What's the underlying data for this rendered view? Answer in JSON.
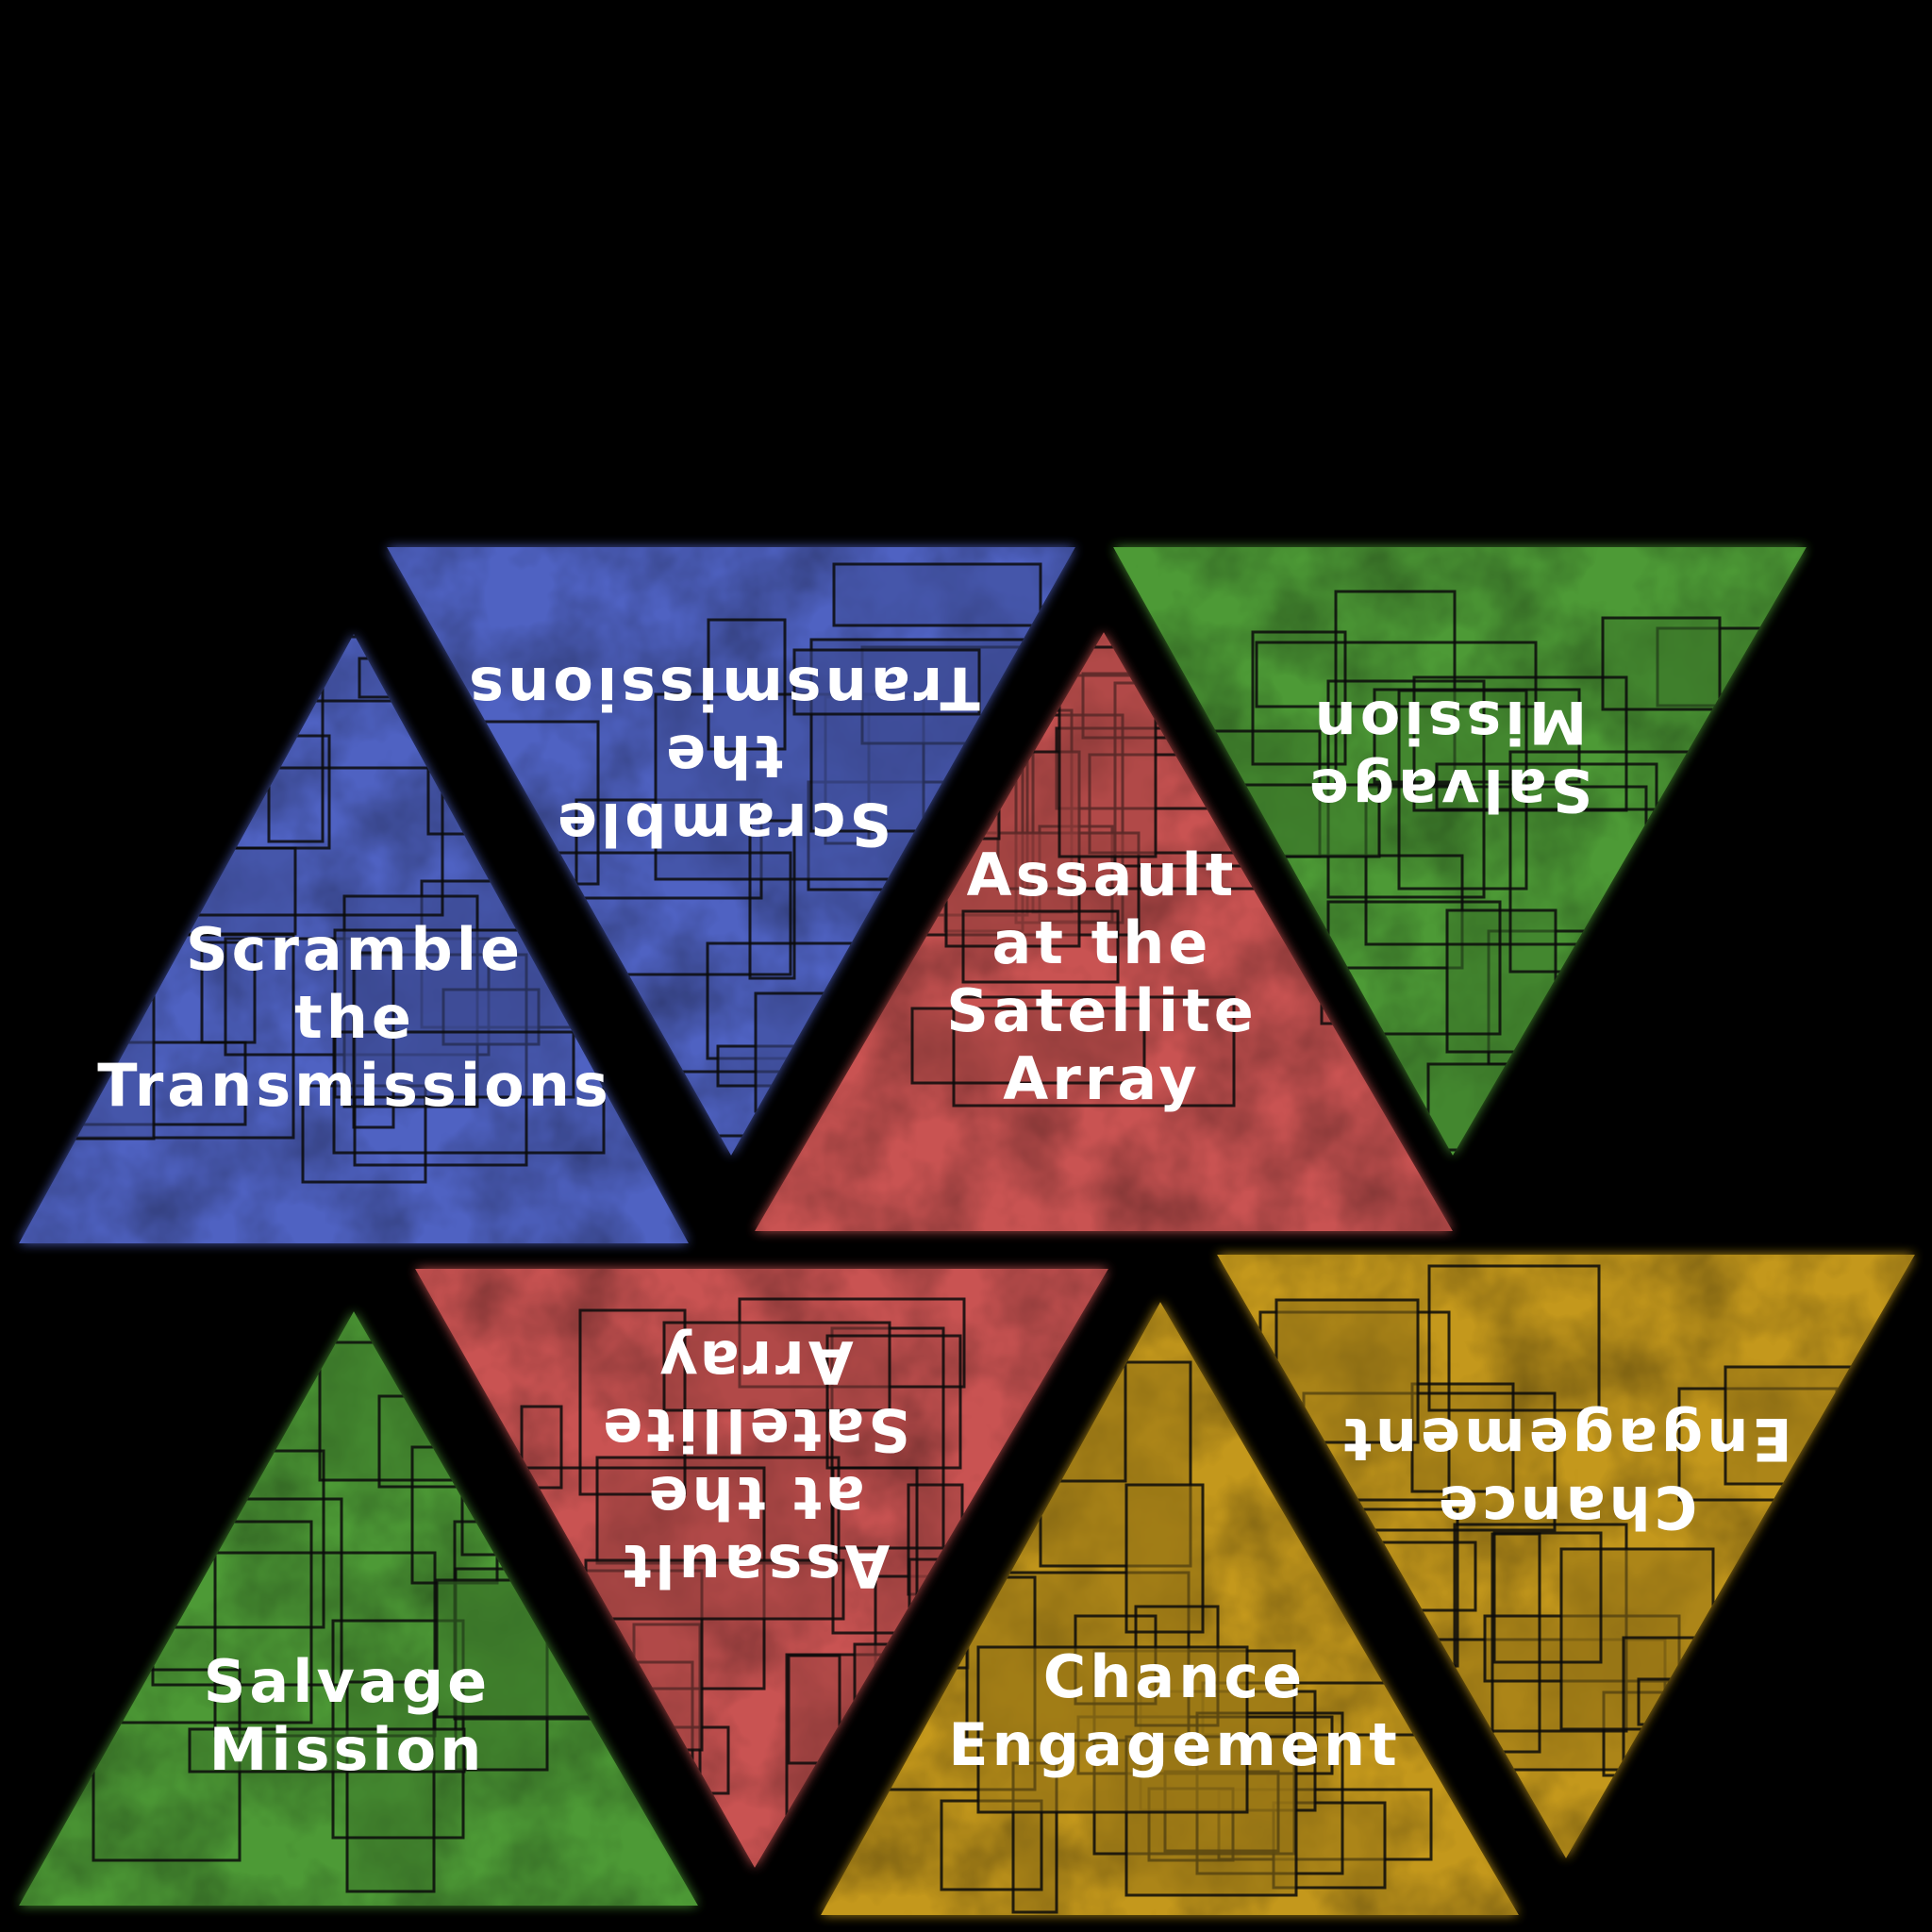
{
  "tiles": [
    {
      "id": "scramble-up",
      "orientation": "up",
      "color": "#4f62c2",
      "lines": [
        "Scramble",
        "the",
        "Transmissions"
      ]
    },
    {
      "id": "scramble-down",
      "orientation": "down",
      "color": "#4f62c2",
      "lines": [
        "Scramble",
        "the",
        "Transmissions"
      ]
    },
    {
      "id": "assault-up",
      "orientation": "up",
      "color": "#c95352",
      "lines": [
        "Assault",
        "at the",
        "Satellite",
        "Array"
      ]
    },
    {
      "id": "salvage-down",
      "orientation": "down",
      "color": "#4d9a36",
      "lines": [
        "Salvage",
        "Mission"
      ]
    },
    {
      "id": "salvage-up",
      "orientation": "up",
      "color": "#4d9a36",
      "lines": [
        "Salvage",
        "Mission"
      ]
    },
    {
      "id": "assault-down",
      "orientation": "down",
      "color": "#c95352",
      "lines": [
        "Assault",
        "at the",
        "Satellite",
        "Array"
      ]
    },
    {
      "id": "chance-up",
      "orientation": "up",
      "color": "#c4981c",
      "lines": [
        "Chance",
        "Engagement"
      ]
    },
    {
      "id": "chance-down",
      "orientation": "down",
      "color": "#c4981c",
      "lines": [
        "Chance",
        "Engagement"
      ]
    }
  ]
}
